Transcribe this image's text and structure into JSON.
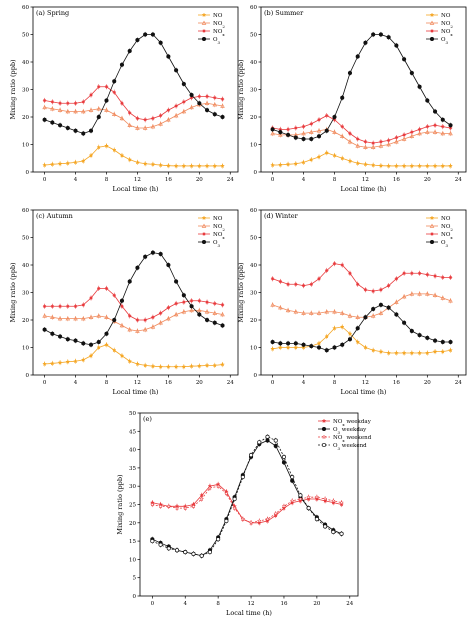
{
  "colors": {
    "NO": "#f5a623",
    "NO2": "#f08a5d",
    "NOx": "#e8383b",
    "O3": "#111111",
    "NOx_weekend": "#e8383b",
    "O3_weekend": "#111111"
  },
  "chart_data": [
    {
      "type": "line",
      "panel_label": "(a) Spring",
      "xlabel": "Local time (h)",
      "ylabel": "Mixing ratio (ppb)",
      "xlim": [
        -1.5,
        25
      ],
      "ylim": [
        0,
        60
      ],
      "xticks": [
        "0",
        "4",
        "8",
        "12",
        "16",
        "20",
        "24"
      ],
      "yticks": [
        "0",
        "10",
        "20",
        "30",
        "40",
        "50",
        "60"
      ],
      "legend_position": "top-right",
      "legend": [
        "NO",
        "NO2",
        "NOx",
        "O3"
      ],
      "x": [
        0,
        1,
        2,
        3,
        4,
        5,
        6,
        7,
        8,
        9,
        10,
        11,
        12,
        13,
        14,
        15,
        16,
        17,
        18,
        19,
        20,
        21,
        22,
        23
      ],
      "series": [
        {
          "name": "NO",
          "color_key": "NO",
          "marker": "star",
          "values": [
            2.5,
            2.8,
            3.0,
            3.2,
            3.5,
            4.0,
            6.0,
            9.0,
            9.5,
            8.0,
            6.0,
            4.5,
            3.5,
            3.0,
            2.8,
            2.5,
            2.3,
            2.2,
            2.2,
            2.2,
            2.2,
            2.2,
            2.2,
            2.2
          ]
        },
        {
          "name": "NO2",
          "color_key": "NO2",
          "marker": "triangle",
          "values": [
            23.5,
            23.0,
            22.5,
            22.0,
            22.0,
            22.0,
            22.5,
            23.0,
            22.5,
            21.0,
            19.5,
            17.0,
            16.0,
            16.0,
            16.5,
            17.5,
            19.0,
            20.5,
            22.0,
            23.5,
            24.5,
            25.0,
            24.5,
            24.0
          ]
        },
        {
          "name": "NOx",
          "color_key": "NOx",
          "marker": "plus",
          "values": [
            26.0,
            25.5,
            25.0,
            25.0,
            25.0,
            25.5,
            28.0,
            31.0,
            31.0,
            29.0,
            25.0,
            21.5,
            19.5,
            19.0,
            19.5,
            20.5,
            22.5,
            24.0,
            25.5,
            27.0,
            27.5,
            27.5,
            27.0,
            26.5
          ]
        },
        {
          "name": "O3",
          "color_key": "O3",
          "marker": "circle",
          "values": [
            19.0,
            18.0,
            17.0,
            16.0,
            15.0,
            14.0,
            15.0,
            20.0,
            26.0,
            33.0,
            39.0,
            44.0,
            48.0,
            50.0,
            50.0,
            47.0,
            42.0,
            37.0,
            32.0,
            28.0,
            25.0,
            22.5,
            21.0,
            20.0
          ]
        }
      ]
    },
    {
      "type": "line",
      "panel_label": "(b) Summer",
      "xlabel": "Local time (h)",
      "ylabel": "Mixing ratio (ppb)",
      "xlim": [
        -1.5,
        25
      ],
      "ylim": [
        0,
        60
      ],
      "xticks": [
        "0",
        "4",
        "8",
        "12",
        "16",
        "20",
        "24"
      ],
      "yticks": [
        "0",
        "10",
        "20",
        "30",
        "40",
        "50",
        "60"
      ],
      "legend_position": "top-right",
      "legend": [
        "NO",
        "NO2",
        "NOx",
        "O3"
      ],
      "x": [
        0,
        1,
        2,
        3,
        4,
        5,
        6,
        7,
        8,
        9,
        10,
        11,
        12,
        13,
        14,
        15,
        16,
        17,
        18,
        19,
        20,
        21,
        22,
        23
      ],
      "series": [
        {
          "name": "NO",
          "color_key": "NO",
          "marker": "star",
          "values": [
            2.5,
            2.6,
            2.8,
            3.0,
            3.5,
            4.5,
            5.5,
            7.0,
            6.0,
            5.0,
            4.0,
            3.2,
            2.8,
            2.5,
            2.3,
            2.2,
            2.2,
            2.2,
            2.2,
            2.2,
            2.2,
            2.2,
            2.2,
            2.2
          ]
        },
        {
          "name": "NO2",
          "color_key": "NO2",
          "marker": "triangle",
          "values": [
            14.0,
            13.5,
            13.5,
            13.5,
            14.0,
            14.5,
            15.0,
            15.5,
            14.5,
            13.0,
            11.0,
            9.5,
            9.0,
            9.0,
            9.5,
            10.0,
            11.0,
            12.0,
            13.0,
            14.0,
            14.5,
            14.5,
            14.0,
            14.0
          ]
        },
        {
          "name": "NOx",
          "color_key": "NOx",
          "marker": "plus",
          "values": [
            16.0,
            15.5,
            15.5,
            16.0,
            16.5,
            17.5,
            19.0,
            20.5,
            19.0,
            16.5,
            14.0,
            12.0,
            11.0,
            10.5,
            11.0,
            11.5,
            12.5,
            13.5,
            14.5,
            15.5,
            16.5,
            17.0,
            16.5,
            16.0
          ]
        },
        {
          "name": "O3",
          "color_key": "O3",
          "marker": "circle",
          "values": [
            15.5,
            14.5,
            13.5,
            12.5,
            12.0,
            12.0,
            13.0,
            15.0,
            20.0,
            27.0,
            36.0,
            42.0,
            47.0,
            50.0,
            50.0,
            49.0,
            46.0,
            41.0,
            36.0,
            31.0,
            26.0,
            22.0,
            19.0,
            17.0
          ]
        }
      ]
    },
    {
      "type": "line",
      "panel_label": "(c) Autumn",
      "xlabel": "Local time (h)",
      "ylabel": "Mixing ratio (ppb)",
      "xlim": [
        -1.5,
        25
      ],
      "ylim": [
        0,
        60
      ],
      "xticks": [
        "0",
        "4",
        "8",
        "12",
        "16",
        "20",
        "24"
      ],
      "yticks": [
        "0",
        "10",
        "20",
        "30",
        "40",
        "50",
        "60"
      ],
      "legend_position": "top-right",
      "legend": [
        "NO",
        "NO2",
        "NOx",
        "O3"
      ],
      "x": [
        0,
        1,
        2,
        3,
        4,
        5,
        6,
        7,
        8,
        9,
        10,
        11,
        12,
        13,
        14,
        15,
        16,
        17,
        18,
        19,
        20,
        21,
        22,
        23
      ],
      "series": [
        {
          "name": "NO",
          "color_key": "NO",
          "marker": "star",
          "values": [
            4.0,
            4.2,
            4.5,
            4.8,
            5.0,
            5.5,
            7.0,
            10.0,
            11.0,
            9.0,
            7.0,
            5.0,
            4.0,
            3.5,
            3.2,
            3.0,
            3.0,
            3.0,
            3.0,
            3.2,
            3.3,
            3.5,
            3.5,
            3.8
          ]
        },
        {
          "name": "NO2",
          "color_key": "NO2",
          "marker": "triangle",
          "values": [
            21.5,
            21.0,
            20.5,
            20.5,
            20.5,
            20.5,
            21.0,
            21.5,
            21.0,
            19.5,
            18.0,
            16.5,
            16.0,
            16.5,
            17.5,
            19.0,
            20.5,
            22.0,
            23.0,
            23.5,
            23.5,
            23.0,
            22.5,
            22.0
          ]
        },
        {
          "name": "NOx",
          "color_key": "NOx",
          "marker": "plus",
          "values": [
            25.0,
            25.0,
            25.0,
            25.0,
            25.0,
            25.5,
            28.0,
            31.5,
            31.5,
            29.0,
            25.0,
            21.5,
            20.0,
            20.0,
            21.0,
            22.5,
            24.5,
            26.0,
            26.5,
            27.0,
            27.0,
            26.5,
            26.0,
            25.5
          ]
        },
        {
          "name": "O3",
          "color_key": "O3",
          "marker": "circle",
          "values": [
            16.5,
            15.0,
            14.0,
            13.0,
            12.5,
            11.5,
            11.0,
            12.0,
            15.0,
            20.0,
            27.0,
            34.0,
            39.0,
            43.0,
            44.5,
            44.0,
            40.0,
            34.0,
            29.0,
            25.0,
            22.0,
            20.0,
            19.0,
            18.0
          ]
        }
      ]
    },
    {
      "type": "line",
      "panel_label": "(d) Winter",
      "xlabel": "Local time (h)",
      "ylabel": "Mixing ratio (ppb)",
      "xlim": [
        -1.5,
        25
      ],
      "ylim": [
        0,
        60
      ],
      "xticks": [
        "0",
        "4",
        "8",
        "12",
        "16",
        "20",
        "24"
      ],
      "yticks": [
        "0",
        "10",
        "20",
        "30",
        "40",
        "50",
        "60"
      ],
      "legend_position": "top-right",
      "legend": [
        "NO",
        "NO2",
        "NOx",
        "O3"
      ],
      "x": [
        0,
        1,
        2,
        3,
        4,
        5,
        6,
        7,
        8,
        9,
        10,
        11,
        12,
        13,
        14,
        15,
        16,
        17,
        18,
        19,
        20,
        21,
        22,
        23
      ],
      "series": [
        {
          "name": "NO",
          "color_key": "NO",
          "marker": "star",
          "values": [
            9.5,
            10.0,
            10.0,
            10.0,
            10.0,
            10.5,
            11.5,
            14.0,
            17.0,
            17.5,
            15.0,
            12.0,
            10.0,
            9.0,
            8.5,
            8.0,
            8.0,
            8.0,
            8.0,
            8.0,
            8.0,
            8.5,
            8.5,
            9.0
          ]
        },
        {
          "name": "NO2",
          "color_key": "NO2",
          "marker": "triangle",
          "values": [
            25.5,
            24.5,
            23.5,
            23.0,
            22.5,
            22.5,
            22.5,
            23.0,
            23.0,
            22.5,
            21.5,
            21.0,
            21.0,
            21.5,
            22.5,
            24.5,
            26.5,
            28.5,
            29.5,
            29.5,
            29.5,
            29.0,
            28.0,
            27.0
          ]
        },
        {
          "name": "NOx",
          "color_key": "NOx",
          "marker": "plus",
          "values": [
            35.0,
            34.0,
            33.0,
            33.0,
            32.5,
            33.0,
            35.0,
            38.0,
            40.5,
            40.0,
            37.0,
            33.0,
            31.0,
            30.5,
            31.0,
            32.5,
            35.0,
            37.0,
            37.0,
            37.0,
            36.5,
            36.0,
            35.5,
            35.5
          ]
        },
        {
          "name": "O3",
          "color_key": "O3",
          "marker": "circle",
          "values": [
            12.0,
            11.5,
            11.5,
            11.5,
            11.0,
            10.5,
            10.0,
            9.0,
            10.0,
            11.0,
            13.0,
            17.0,
            21.0,
            24.0,
            25.5,
            24.5,
            22.0,
            19.0,
            16.0,
            14.5,
            13.5,
            12.5,
            12.0,
            12.0
          ]
        }
      ]
    },
    {
      "type": "line",
      "panel_label": "(e)",
      "xlabel": "Local time (h)",
      "ylabel": "Mixing ratio (ppb)",
      "xlim": [
        -1.5,
        25
      ],
      "ylim": [
        0,
        50
      ],
      "xticks": [
        "0",
        "4",
        "8",
        "12",
        "16",
        "20",
        "24"
      ],
      "yticks": [
        "0",
        "5",
        "10",
        "15",
        "20",
        "25",
        "30",
        "35",
        "40",
        "45",
        "50"
      ],
      "legend_position": "top-right",
      "legend": [
        "NOx weekday",
        "O3 weekday",
        "NOx weekend",
        "O3 weekend"
      ],
      "x": [
        0,
        1,
        2,
        3,
        4,
        5,
        6,
        7,
        8,
        9,
        10,
        11,
        12,
        13,
        14,
        15,
        16,
        17,
        18,
        19,
        20,
        21,
        22,
        23
      ],
      "series": [
        {
          "name": "NOx weekday",
          "color_key": "NOx",
          "marker": "star",
          "values": [
            25.5,
            25.0,
            24.5,
            24.5,
            24.5,
            25.0,
            27.5,
            30.0,
            30.5,
            28.5,
            24.5,
            21.0,
            20.0,
            20.0,
            20.5,
            22.0,
            24.0,
            25.5,
            26.0,
            26.5,
            26.5,
            26.0,
            25.5,
            25.0
          ]
        },
        {
          "name": "O3 weekday",
          "color_key": "O3",
          "marker": "circle",
          "values": [
            15.5,
            14.5,
            13.5,
            12.5,
            12.0,
            11.5,
            11.0,
            12.5,
            16.0,
            21.0,
            27.0,
            33.0,
            38.0,
            41.5,
            42.5,
            41.0,
            36.5,
            31.5,
            27.0,
            24.0,
            21.5,
            19.5,
            18.0,
            17.0
          ]
        },
        {
          "name": "NOx weekend",
          "color_key": "NOx_weekend",
          "marker": "star-open",
          "dashed": true,
          "values": [
            25.0,
            24.5,
            24.5,
            24.0,
            24.0,
            24.5,
            26.5,
            29.5,
            30.0,
            28.0,
            24.0,
            21.0,
            20.0,
            20.5,
            21.0,
            22.5,
            24.5,
            26.0,
            26.5,
            27.0,
            27.0,
            26.5,
            26.0,
            25.5
          ]
        },
        {
          "name": "O3 weekend",
          "color_key": "O3_weekend",
          "marker": "circle-open",
          "dashed": true,
          "values": [
            15.0,
            14.0,
            13.0,
            12.5,
            12.0,
            11.5,
            11.0,
            12.0,
            15.5,
            20.5,
            26.5,
            32.5,
            38.5,
            42.0,
            43.5,
            42.5,
            38.0,
            32.5,
            27.5,
            24.0,
            21.0,
            19.0,
            17.5,
            17.0
          ]
        }
      ]
    }
  ]
}
